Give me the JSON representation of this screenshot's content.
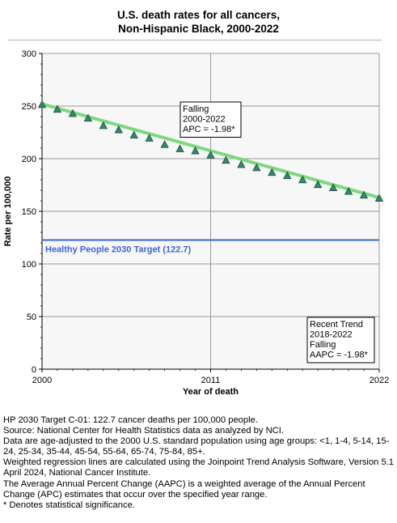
{
  "chart_data": {
    "type": "line",
    "title_line1": "U.S. death rates for all cancers,",
    "title_line2": "Non-Hispanic Black,  2000-2022",
    "xlabel": "Year of death",
    "ylabel": "Rate per 100,000",
    "xlim": [
      2000,
      2022
    ],
    "ylim": [
      0,
      300
    ],
    "x_ticks": [
      2000,
      2011,
      2022
    ],
    "y_ticks": [
      0,
      50,
      100,
      150,
      200,
      250,
      300
    ],
    "grid": true,
    "series": [
      {
        "type": "scatter",
        "marker": "triangle",
        "color": "#2f8a6e",
        "x": [
          2000,
          2001,
          2002,
          2003,
          2004,
          2005,
          2006,
          2007,
          2008,
          2009,
          2010,
          2011,
          2012,
          2013,
          2014,
          2015,
          2016,
          2017,
          2018,
          2019,
          2020,
          2021,
          2022
        ],
        "values": [
          251.5,
          247.0,
          243.0,
          238.5,
          231.5,
          227.5,
          222.5,
          219.5,
          213.5,
          209.5,
          207.5,
          203.5,
          198.5,
          194.5,
          191.5,
          187.0,
          184.0,
          180.0,
          175.5,
          172.5,
          169.0,
          165.5,
          162.5
        ]
      },
      {
        "type": "line",
        "color": "#7dd87d",
        "x": [
          2000,
          2022
        ],
        "values": [
          252.0,
          163.0
        ]
      }
    ],
    "target": {
      "value": 122.7,
      "label": "Healthy People 2030 Target (122.7)",
      "color": "#3a66d9"
    },
    "annotations": [
      {
        "lines": [
          "Falling",
          "2000-2022",
          "APC = -1.98*"
        ]
      },
      {
        "lines": [
          "Recent Trend",
          "2018-2022",
          "Falling",
          "AAPC = -1.98*"
        ]
      }
    ]
  },
  "footnotes": [
    "HP 2030 Target C-01: 122.7 cancer deaths per 100,000 people.",
    "Source: National Center for Health Statistics data as analyzed by NCI.",
    "Data are age-adjusted to the 2000 U.S. standard population using age groups: <1, 1-4, 5-14, 15-24, 25-34, 35-44, 45-54, 55-64, 65-74, 75-84, 85+.",
    "Weighted regression lines are calculated using the Joinpoint Trend Analysis Software, Version 5.1 April 2024, National Cancer Institute.",
    "The Average Annual Percent Change (AAPC) is a weighted average of the Annual Percent Change (APC) estimates that occur over the specified year range.",
    "* Denotes statistical significance."
  ]
}
